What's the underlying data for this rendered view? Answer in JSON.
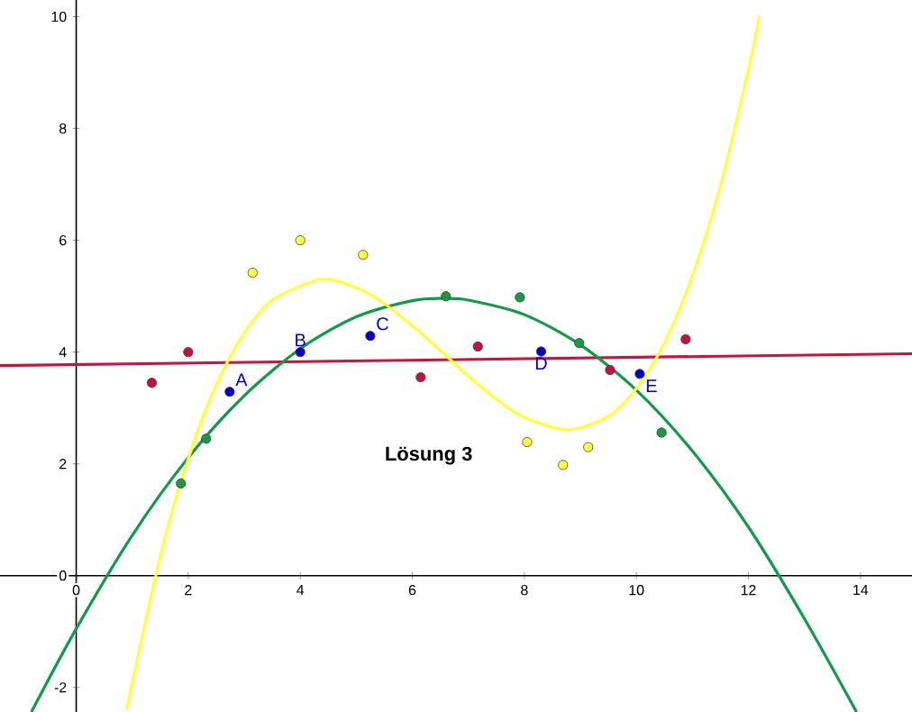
{
  "chart_data": {
    "type": "scatter",
    "xlim": [
      -1.36,
      14.92
    ],
    "ylim": [
      -2.44,
      10.3
    ],
    "xticks": [
      0,
      2,
      4,
      6,
      8,
      10,
      12,
      14
    ],
    "yticks": [
      -2,
      0,
      2,
      4,
      6,
      8,
      10
    ],
    "annotations": [
      "Lösung 3"
    ],
    "series": [
      {
        "type": "line",
        "marker": "none",
        "color": "#c8143c",
        "x": [
          -1.36,
          14.92
        ],
        "values": [
          3.76,
          3.97
        ]
      },
      {
        "type": "line",
        "marker": "none",
        "color": "#0f9b48",
        "x": [
          -0.8,
          0,
          1,
          2,
          3,
          4,
          5,
          6,
          6.55,
          7,
          8,
          9,
          10,
          11,
          12,
          13,
          13.93
        ],
        "values": [
          -2.44,
          -0.95,
          0.72,
          2.11,
          3.22,
          4.06,
          4.63,
          4.92,
          4.96,
          4.93,
          4.67,
          4.13,
          3.32,
          2.23,
          0.87,
          -0.77,
          -2.44
        ]
      },
      {
        "type": "line",
        "marker": "none",
        "color": "#ffff33",
        "x": [
          0.9,
          1.5,
          2,
          2.5,
          3,
          3.5,
          4.38,
          5,
          5.5,
          6,
          6.5,
          7,
          7.5,
          8,
          8.78,
          9.5,
          10,
          10.5,
          11,
          11.5,
          12,
          12.2
        ],
        "values": [
          -2.41,
          0.33,
          2.09,
          3.41,
          4.34,
          4.93,
          5.3,
          5.15,
          4.87,
          4.47,
          4.03,
          3.57,
          3.16,
          2.83,
          2.61,
          2.85,
          3.35,
          4.16,
          5.36,
          6.97,
          9.05,
          10.02
        ]
      },
      {
        "color": "#c8103c",
        "x": [
          1.35,
          2.0,
          6.15,
          7.17,
          9.53,
          10.88
        ],
        "values": [
          3.45,
          4.0,
          3.55,
          4.1,
          3.68,
          4.23
        ]
      },
      {
        "color": "#ffff40",
        "x": [
          3.15,
          4.0,
          5.12,
          8.05,
          8.69,
          9.14
        ],
        "values": [
          5.42,
          6.0,
          5.74,
          2.39,
          1.98,
          2.3
        ]
      },
      {
        "color": "#1a9a40",
        "x": [
          1.87,
          2.32,
          6.6,
          7.92,
          8.98,
          10.45
        ],
        "values": [
          1.65,
          2.45,
          5.0,
          4.98,
          4.16,
          2.56
        ]
      },
      {
        "color": "#0000cc",
        "x": [
          2.74,
          4.0,
          5.25,
          8.3,
          10.06
        ],
        "values": [
          3.29,
          4.0,
          4.29,
          4.01,
          3.61
        ],
        "value_labels": [
          "A",
          "B",
          "C",
          "D",
          "E"
        ]
      }
    ]
  }
}
